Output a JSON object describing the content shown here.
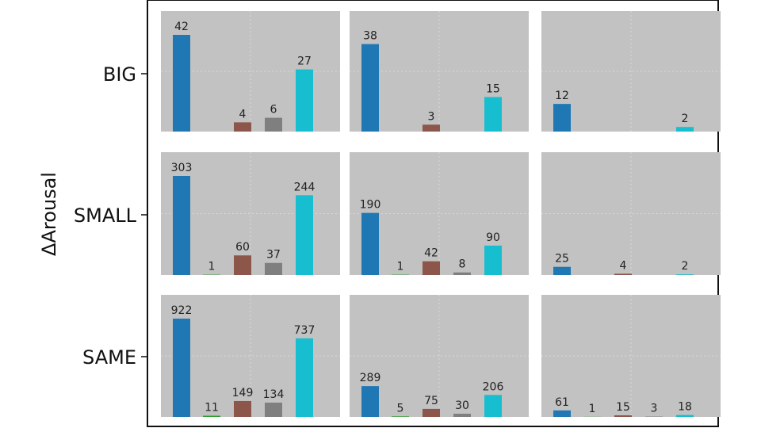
{
  "chart_data": {
    "type": "bar",
    "ylabel": "ΔArousal",
    "row_labels": [
      "BIG",
      "SMALL",
      "SAME"
    ],
    "grid": true,
    "series_colors": [
      "#1f77b4",
      "#2ca02c",
      "#8c564b",
      "#7f7f7f",
      "#17becf"
    ],
    "panels": [
      [
        {
          "values": [
            42,
            0,
            4,
            6,
            27
          ],
          "labels": [
            "42",
            "",
            "4",
            "6",
            "27"
          ]
        },
        {
          "values": [
            38,
            0,
            3,
            0,
            15
          ],
          "labels": [
            "38",
            "",
            "3",
            "",
            "15"
          ]
        },
        {
          "values": [
            12,
            0,
            0,
            0,
            2
          ],
          "labels": [
            "12",
            "",
            "",
            "",
            "2"
          ]
        }
      ],
      [
        {
          "values": [
            303,
            1,
            60,
            37,
            244
          ],
          "labels": [
            "303",
            "1",
            "60",
            "37",
            "244"
          ]
        },
        {
          "values": [
            190,
            1,
            42,
            8,
            90
          ],
          "labels": [
            "190",
            "1",
            "42",
            "8",
            "90"
          ]
        },
        {
          "values": [
            25,
            0,
            4,
            0,
            2
          ],
          "labels": [
            "25",
            "",
            "4",
            "",
            "2"
          ]
        }
      ],
      [
        {
          "values": [
            922,
            11,
            149,
            134,
            737
          ],
          "labels": [
            "922",
            "11",
            "149",
            "134",
            "737"
          ]
        },
        {
          "values": [
            289,
            5,
            75,
            30,
            206
          ],
          "labels": [
            "289",
            "5",
            "75",
            "30",
            "206"
          ]
        },
        {
          "values": [
            61,
            1,
            15,
            3,
            18
          ],
          "labels": [
            "61",
            "1",
            "15",
            "3",
            "18"
          ]
        }
      ]
    ]
  }
}
